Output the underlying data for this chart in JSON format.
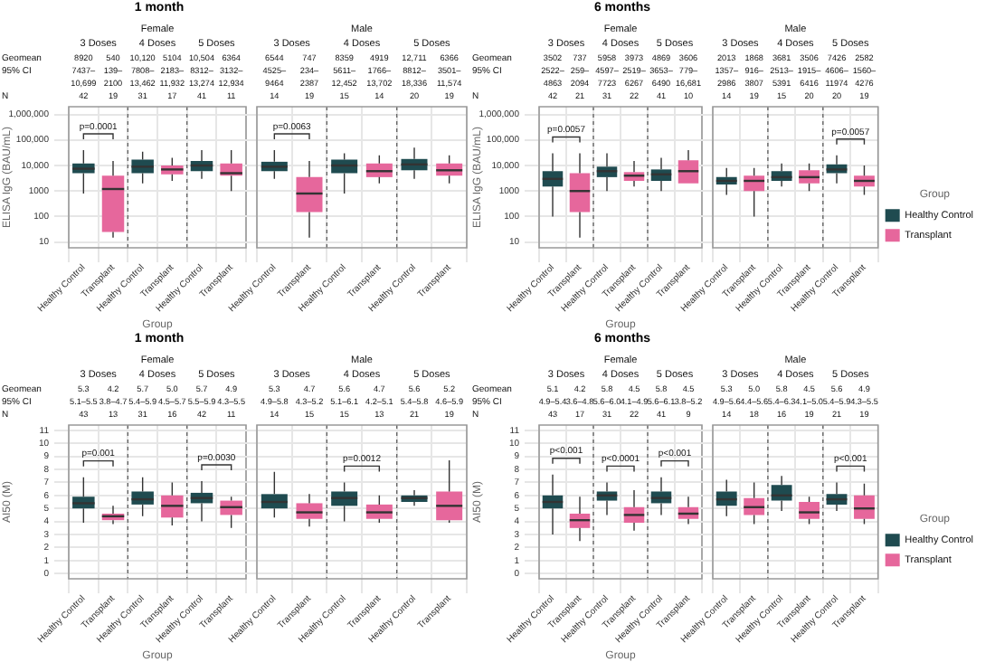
{
  "chart_data": [
    {
      "type": "box",
      "title": "1 month",
      "subtitle": "Female",
      "xlabel": "Group",
      "ylabel": "ELISA IgG (BAU/mL)",
      "log": "y",
      "grid": true,
      "legend": false,
      "categories": [
        "Healthy Control",
        "Transplant",
        "Healthy Control",
        "Transplant",
        "Healthy Control",
        "Transplant"
      ],
      "ylim": [
        6,
        2000000
      ],
      "yticks": [
        {
          "value": 10,
          "label": "10"
        },
        {
          "value": 100,
          "label": "100"
        },
        1000,
        {
          "value": 10000,
          "label": "10,000"
        },
        {
          "value": 100000,
          "label": "100,000"
        },
        {
          "value": 1000000,
          "label": "1,000,000"
        }
      ],
      "annotations": [
        "Geomean",
        "95% CI",
        "N",
        "3 Doses",
        "4 Doses",
        "5 Doses",
        "8920",
        "540",
        "10,120",
        "5104",
        "10,504",
        "6364",
        "7437–10,699",
        "139–2100",
        "7808–13,462",
        "2183–11,932",
        "8312–13,274",
        "3132–12,934",
        "42",
        "19",
        "31",
        "17",
        "41",
        "11",
        "p=0.0001",
        null,
        null
      ],
      "series": [
        {
          "color": "#1f4b50",
          "boxes": [
            {
              "low": 800,
              "q1": 5000,
              "median": 7500,
              "q3": 12000,
              "high": 40000
            },
            null,
            {
              "low": 2000,
              "q1": 5000,
              "median": 9000,
              "q3": 17000,
              "high": 35000
            },
            null,
            {
              "low": 3000,
              "q1": 6000,
              "median": 10000,
              "q3": 15000,
              "high": 40000
            },
            null
          ]
        },
        {
          "color": "#e6679c",
          "boxes": [
            null,
            {
              "low": 15,
              "q1": 25,
              "median": 1200,
              "q3": 4000,
              "high": 15000
            },
            null,
            {
              "low": 2500,
              "q1": 4500,
              "median": 7000,
              "q3": 10000,
              "high": 20000
            },
            null,
            {
              "low": 1000,
              "q1": 4000,
              "median": 5000,
              "q3": 12000,
              "high": 40000
            }
          ]
        }
      ]
    },
    {
      "type": "box",
      "subtitle": "Male",
      "log": "y",
      "grid": true,
      "legend": false,
      "tick_labels": "x",
      "categories": [
        "Healthy Control",
        "Transplant",
        "Healthy Control",
        "Transplant",
        "Healthy Control",
        "Transplant"
      ],
      "ylim": [
        6,
        2000000
      ],
      "yticks": [
        {
          "value": 10,
          "label": null
        },
        {
          "value": 100,
          "label": null
        },
        {
          "value": 1000,
          "label": null
        },
        {
          "value": 10000,
          "label": null
        },
        {
          "value": 100000,
          "label": null
        },
        {
          "value": 1000000,
          "label": null
        }
      ],
      "annotations": [
        "3 Doses",
        "4 Doses",
        "5 Doses",
        "6544",
        "747",
        "8359",
        "4919",
        "12,711",
        "6366",
        "4525–9464",
        "234–2387",
        "5611–12,452",
        "1766–13,702",
        "8812–18,336",
        "3501–11,574",
        "14",
        "19",
        "15",
        "14",
        "20",
        "19",
        "p=0.0063",
        null,
        null
      ],
      "series": [
        {
          "color": "#1f4b50",
          "boxes": [
            {
              "low": 3000,
              "q1": 6000,
              "median": 9000,
              "q3": 14000,
              "high": 40000
            },
            null,
            {
              "low": 800,
              "q1": 5000,
              "median": 10000,
              "q3": 17000,
              "high": 30000
            },
            null,
            {
              "low": 3000,
              "q1": 6500,
              "median": 11000,
              "q3": 18000,
              "high": 50000
            },
            null
          ]
        },
        {
          "color": "#e6679c",
          "boxes": [
            null,
            {
              "low": 15,
              "q1": 150,
              "median": 800,
              "q3": 3500,
              "high": 15000
            },
            null,
            {
              "low": 2000,
              "q1": 3500,
              "median": 6000,
              "q3": 12000,
              "high": 25000
            },
            null,
            {
              "low": 2000,
              "q1": 4000,
              "median": 6500,
              "q3": 12000,
              "high": 25000
            }
          ]
        }
      ]
    },
    {
      "type": "box",
      "title": "6 months",
      "subtitle": "Female",
      "xlabel": "Group",
      "ylabel": "ELISA IgG (BAU/mL)",
      "log": "y",
      "grid": true,
      "legend": false,
      "categories": [
        "Healthy Control",
        "Transplant",
        "Healthy Control",
        "Transplant",
        "Healthy Control",
        "Transplant"
      ],
      "ylim": [
        6,
        2000000
      ],
      "yticks": [
        {
          "value": 10,
          "label": "10"
        },
        {
          "value": 100,
          "label": "100"
        },
        1000,
        {
          "value": 10000,
          "label": "10,000"
        },
        {
          "value": 100000,
          "label": "100,000"
        },
        {
          "value": 1000000,
          "label": "1,000,000"
        }
      ],
      "annotations": [
        "Geomean",
        "95% CI",
        "N",
        "3 Doses",
        "4 Doses",
        "5 Doses",
        "3502",
        "737",
        "5958",
        "3973",
        "4869",
        "3606",
        "2522–4863",
        "259–2094",
        "4597–7723",
        "2519–6267",
        "3653–6490",
        "779–16,681",
        "42",
        "21",
        "31",
        "22",
        "41",
        "10",
        "p=0.0057",
        null,
        null
      ],
      "series": [
        {
          "color": "#1f4b50",
          "boxes": [
            {
              "low": 100,
              "q1": 1500,
              "median": 3000,
              "q3": 6000,
              "high": 30000
            },
            null,
            {
              "low": 1000,
              "q1": 3500,
              "median": 6000,
              "q3": 9000,
              "high": 30000
            },
            null,
            {
              "low": 1000,
              "q1": 2500,
              "median": 4500,
              "q3": 7000,
              "high": 20000
            },
            null
          ]
        },
        {
          "color": "#e6679c",
          "boxes": [
            null,
            {
              "low": 15,
              "q1": 150,
              "median": 1000,
              "q3": 5000,
              "high": 30000
            },
            null,
            {
              "low": 1500,
              "q1": 2500,
              "median": 4000,
              "q3": 5500,
              "high": 15000
            },
            null,
            {
              "low": 2000,
              "q1": 2000,
              "median": 6000,
              "q3": 16000,
              "high": 40000
            }
          ]
        }
      ]
    },
    {
      "type": "box",
      "subtitle": "Male",
      "log": "y",
      "grid": true,
      "legend": "right",
      "legend_title": "Group",
      "tick_labels": "x",
      "categories": [
        "Healthy Control",
        "Transplant",
        "Healthy Control",
        "Transplant",
        "Healthy Control",
        "Transplant"
      ],
      "ylim": [
        6,
        2000000
      ],
      "yticks": [
        {
          "value": 10,
          "label": null
        },
        {
          "value": 100,
          "label": null
        },
        {
          "value": 1000,
          "label": null
        },
        {
          "value": 10000,
          "label": null
        },
        {
          "value": 100000,
          "label": null
        },
        {
          "value": 1000000,
          "label": null
        }
      ],
      "annotations": [
        "3 Doses",
        "4 Doses",
        "5 Doses",
        "2013",
        "1868",
        "3681",
        "3506",
        "7426",
        "2582",
        "1357–2986",
        "916–3807",
        "2513–5391",
        "1915–6416",
        "4606–11974",
        "1560–4276",
        "14",
        "19",
        "15",
        "20",
        "20",
        "19",
        null,
        null,
        "p=0.0057"
      ],
      "series": [
        {
          "name": "Healthy Control",
          "color": "#1f4b50",
          "boxes": [
            {
              "low": 700,
              "q1": 1800,
              "median": 2500,
              "q3": 3500,
              "high": 8000
            },
            null,
            {
              "low": 1500,
              "q1": 2500,
              "median": 3500,
              "q3": 6000,
              "high": 12000
            },
            null,
            {
              "low": 2000,
              "q1": 5000,
              "median": 7000,
              "q3": 11000,
              "high": 25000
            },
            null
          ]
        },
        {
          "name": "Transplant",
          "color": "#e6679c",
          "boxes": [
            null,
            {
              "low": 100,
              "q1": 1000,
              "median": 2500,
              "q3": 4000,
              "high": 8000
            },
            null,
            {
              "low": 1000,
              "q1": 2000,
              "median": 3500,
              "q3": 6500,
              "high": 12000
            },
            null,
            {
              "low": 700,
              "q1": 1500,
              "median": 2500,
              "q3": 4000,
              "high": 10000
            }
          ]
        }
      ]
    },
    {
      "type": "box",
      "title": "1 month",
      "subtitle": "Female",
      "xlabel": "Group",
      "ylabel": "AI50 (M)",
      "grid": true,
      "legend": false,
      "categories": [
        "Healthy Control",
        "Transplant",
        "Healthy Control",
        "Transplant",
        "Healthy Control",
        "Transplant"
      ],
      "ylim": [
        -0.4,
        11.4
      ],
      "yticks": [
        0,
        1,
        2,
        3,
        4,
        5,
        6,
        7,
        8,
        9,
        10,
        11
      ],
      "annotations": [
        "Geomean",
        "95% CI",
        "N",
        "3 Doses",
        "4 Doses",
        "5 Doses",
        "5.3",
        "4.2",
        "5.7",
        "5.0",
        "5.7",
        "4.9",
        "5.1–5.5",
        "3.8–4.7",
        "5.4–5.9",
        "4.5–5.7",
        "5.5–5.9",
        "4.3–5.5",
        "43",
        "13",
        "31",
        "16",
        "42",
        "11",
        "p=0.001",
        null,
        "p=0.0030"
      ],
      "series": [
        {
          "color": "#1f4b50",
          "boxes": [
            {
              "low": 3.9,
              "q1": 5.0,
              "median": 5.4,
              "q3": 5.9,
              "high": 7.4
            },
            null,
            {
              "low": 4.4,
              "q1": 5.3,
              "median": 5.7,
              "q3": 6.3,
              "high": 7.4
            },
            null,
            {
              "low": 4.0,
              "q1": 5.4,
              "median": 5.8,
              "q3": 6.2,
              "high": 7.1
            },
            null
          ]
        },
        {
          "color": "#e6679c",
          "boxes": [
            null,
            {
              "low": 3.8,
              "q1": 4.1,
              "median": 4.4,
              "q3": 4.6,
              "high": 5.2
            },
            null,
            {
              "low": 3.7,
              "q1": 4.3,
              "median": 5.2,
              "q3": 6.0,
              "high": 7.0
            },
            null,
            {
              "low": 3.5,
              "q1": 4.5,
              "median": 5.1,
              "q3": 5.6,
              "high": 5.9
            }
          ]
        }
      ]
    },
    {
      "type": "box",
      "subtitle": "Male",
      "grid": true,
      "legend": false,
      "tick_labels": "x",
      "categories": [
        "Healthy Control",
        "Transplant",
        "Healthy Control",
        "Transplant",
        "Healthy Control",
        "Transplant"
      ],
      "ylim": [
        -0.4,
        11.4
      ],
      "yticks": [
        0,
        1,
        2,
        3,
        4,
        5,
        6,
        7,
        8,
        9,
        10,
        11
      ],
      "annotations": [
        "3 Doses",
        "4 Doses",
        "5 Doses",
        "5.3",
        "4.7",
        "5.6",
        "4.7",
        "5.6",
        "5.2",
        "4.9–5.8",
        "4.3–5.2",
        "5.1–6.1",
        "4.2–5.1",
        "5.4–5.8",
        "4.6–5.9",
        "14",
        "15",
        "15",
        "13",
        "21",
        "19",
        null,
        "p=0.0012",
        null
      ],
      "series": [
        {
          "color": "#1f4b50",
          "boxes": [
            {
              "low": 4.3,
              "q1": 5.0,
              "median": 5.5,
              "q3": 6.1,
              "high": 7.8
            },
            null,
            {
              "low": 4.0,
              "q1": 5.2,
              "median": 5.8,
              "q3": 6.3,
              "high": 7.0
            },
            null,
            {
              "low": 5.2,
              "q1": 5.5,
              "median": 5.8,
              "q3": 6.0,
              "high": 6.4
            },
            null
          ]
        },
        {
          "color": "#e6679c",
          "boxes": [
            null,
            {
              "low": 3.6,
              "q1": 4.2,
              "median": 4.7,
              "q3": 5.4,
              "high": 6.1
            },
            null,
            {
              "low": 3.9,
              "q1": 4.2,
              "median": 4.7,
              "q3": 5.3,
              "high": 6.0
            },
            null,
            {
              "low": 3.9,
              "q1": 4.1,
              "median": 5.2,
              "q3": 6.3,
              "high": 8.7
            }
          ]
        }
      ]
    },
    {
      "type": "box",
      "title": "6 months",
      "subtitle": "Female",
      "xlabel": "Group",
      "ylabel": "AI50 (M)",
      "grid": true,
      "legend": false,
      "categories": [
        "Healthy Control",
        "Transplant",
        "Healthy Control",
        "Transplant",
        "Healthy Control",
        "Transplant"
      ],
      "ylim": [
        -0.4,
        11.4
      ],
      "yticks": [
        0,
        1,
        2,
        3,
        4,
        5,
        6,
        7,
        8,
        9,
        10,
        11
      ],
      "annotations": [
        "Geomean",
        "95% CI",
        "N",
        "3 Doses",
        "4 Doses",
        "5 Doses",
        "5.1",
        "4.2",
        "5.8",
        "4.5",
        "5.8",
        "4.5",
        "4.9–5.4",
        "3.6–4.8",
        "5.6–6.0",
        "4.1–4.9",
        "5.6–6.1",
        "3.8–5.2",
        "43",
        "17",
        "31",
        "22",
        "41",
        "9",
        "p<0.001",
        "p<0.0001",
        "p<0.001"
      ],
      "series": [
        {
          "color": "#1f4b50",
          "boxes": [
            {
              "low": 3.0,
              "q1": 5.0,
              "median": 5.5,
              "q3": 6.0,
              "high": 7.6
            },
            null,
            {
              "low": 4.5,
              "q1": 5.6,
              "median": 6.0,
              "q3": 6.3,
              "high": 7.0
            },
            null,
            {
              "low": 4.5,
              "q1": 5.4,
              "median": 5.8,
              "q3": 6.3,
              "high": 7.4
            },
            null
          ]
        },
        {
          "color": "#e6679c",
          "boxes": [
            null,
            {
              "low": 2.5,
              "q1": 3.5,
              "median": 4.1,
              "q3": 4.6,
              "high": 5.9
            },
            null,
            {
              "low": 3.3,
              "q1": 3.9,
              "median": 4.5,
              "q3": 5.1,
              "high": 6.4
            },
            null,
            {
              "low": 3.8,
              "q1": 4.2,
              "median": 4.6,
              "q3": 5.1,
              "high": 5.9
            }
          ]
        }
      ]
    },
    {
      "type": "box",
      "subtitle": "Male",
      "grid": true,
      "legend": "right",
      "legend_title": "Group",
      "tick_labels": "x",
      "categories": [
        "Healthy Control",
        "Transplant",
        "Healthy Control",
        "Transplant",
        "Healthy Control",
        "Transplant"
      ],
      "ylim": [
        -0.4,
        11.4
      ],
      "yticks": [
        0,
        1,
        2,
        3,
        4,
        5,
        6,
        7,
        8,
        9,
        10,
        11
      ],
      "annotations": [
        "3 Doses",
        "4 Doses",
        "5 Doses",
        "5.3",
        "5.0",
        "5.8",
        "4.5",
        "5.6",
        "4.9",
        "4.9–5.6",
        "4.4–5.6",
        "5.4–6.3",
        "4.1–5.0",
        "5.4–5.9",
        "4.3–5.5",
        "14",
        "18",
        "16",
        "19",
        "21",
        "19",
        null,
        null,
        "p<0.001"
      ],
      "series": [
        {
          "name": "Healthy Control",
          "color": "#1f4b50",
          "boxes": [
            {
              "low": 4.4,
              "q1": 5.2,
              "median": 5.7,
              "q3": 6.3,
              "high": 7.2
            },
            null,
            {
              "low": 4.8,
              "q1": 5.6,
              "median": 6.0,
              "q3": 6.8,
              "high": 7.5
            },
            null,
            {
              "low": 4.8,
              "q1": 5.3,
              "median": 5.7,
              "q3": 6.1,
              "high": 7.0
            },
            null
          ]
        },
        {
          "name": "Transplant",
          "color": "#e6679c",
          "boxes": [
            null,
            {
              "low": 3.8,
              "q1": 4.5,
              "median": 5.1,
              "q3": 5.8,
              "high": 7.0
            },
            null,
            {
              "low": 3.8,
              "q1": 4.2,
              "median": 4.7,
              "q3": 5.5,
              "high": 5.9
            },
            null,
            {
              "low": 3.8,
              "q1": 4.2,
              "median": 5.0,
              "q3": 6.0,
              "high": 6.9
            }
          ]
        }
      ]
    }
  ]
}
